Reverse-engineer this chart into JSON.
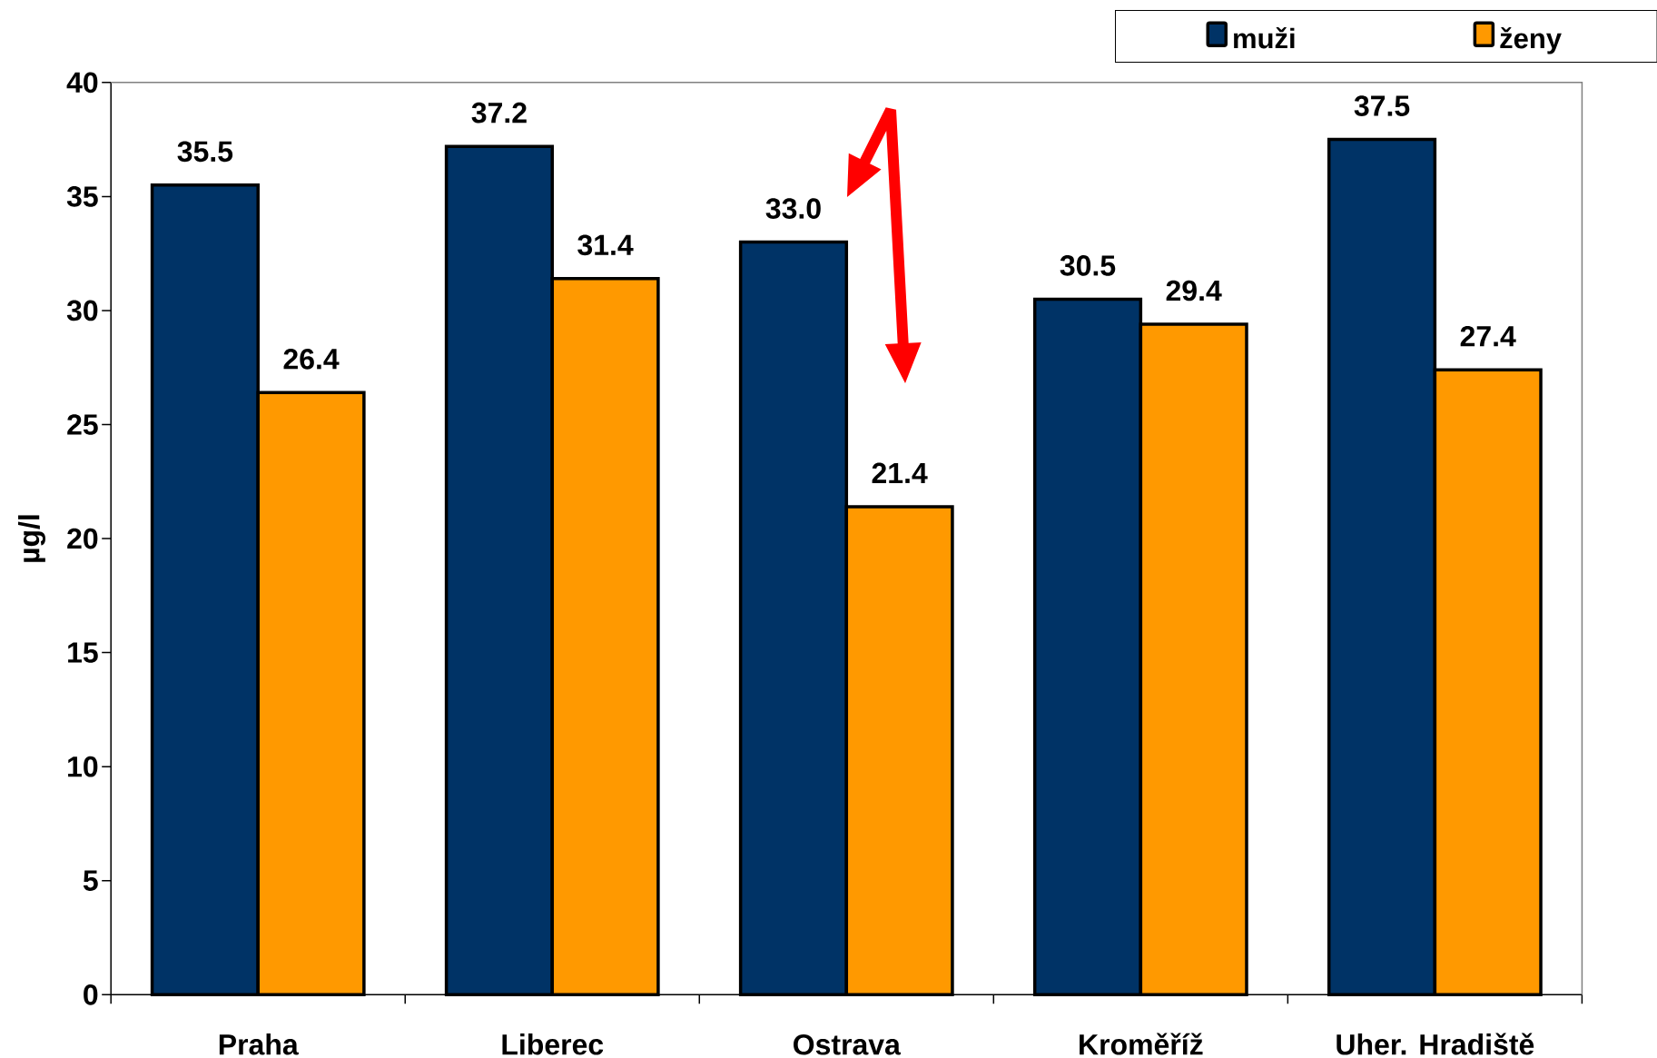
{
  "chart_data": {
    "type": "bar",
    "ylabel": "µg/l",
    "categories": [
      "Praha",
      "Liberec",
      "Ostrava",
      "Kroměříž",
      "Uher. Hradiště"
    ],
    "series": [
      {
        "name": "muži",
        "color": "#003366",
        "values": [
          35.5,
          37.2,
          33.0,
          30.5,
          37.5
        ],
        "value_labels": [
          "35.5",
          "37.2",
          "33.0",
          "30.5",
          "37.5"
        ]
      },
      {
        "name": "ženy",
        "color": "#ff9900",
        "values": [
          26.4,
          31.4,
          21.4,
          29.4,
          27.4
        ],
        "value_labels": [
          "26.4",
          "31.4",
          "21.4",
          "29.4",
          "27.4"
        ]
      }
    ],
    "ylim": [
      0,
      40
    ],
    "yticks": [
      0,
      5,
      10,
      15,
      20,
      25,
      30,
      35,
      40
    ],
    "legend": "top right"
  }
}
